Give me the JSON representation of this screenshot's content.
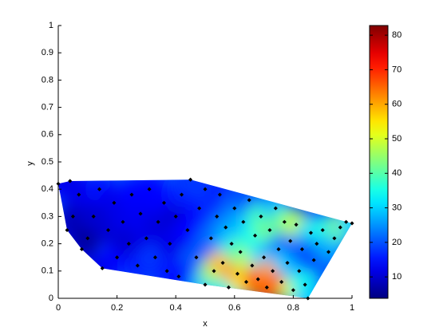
{
  "chart_data": {
    "type": "scatter",
    "xlabel": "x",
    "ylabel": "y",
    "xlim": [
      0,
      1
    ],
    "ylim": [
      0,
      1
    ],
    "xticks": [
      0,
      0.2,
      0.4,
      0.6,
      0.8,
      1
    ],
    "yticks": [
      0,
      0.1,
      0.2,
      0.3,
      0.4,
      0.5,
      0.6,
      0.7,
      0.8,
      0.9,
      1
    ],
    "marker_color": "#000000",
    "colormap": "jet",
    "x": [
      0.0,
      0.04,
      0.03,
      0.05,
      0.08,
      0.07,
      0.1,
      0.12,
      0.15,
      0.14,
      0.17,
      0.19,
      0.2,
      0.22,
      0.24,
      0.25,
      0.27,
      0.28,
      0.3,
      0.31,
      0.33,
      0.34,
      0.36,
      0.37,
      0.38,
      0.4,
      0.41,
      0.42,
      0.44,
      0.45,
      0.47,
      0.48,
      0.5,
      0.5,
      0.52,
      0.53,
      0.54,
      0.55,
      0.56,
      0.57,
      0.58,
      0.59,
      0.6,
      0.61,
      0.62,
      0.63,
      0.64,
      0.65,
      0.66,
      0.67,
      0.68,
      0.69,
      0.7,
      0.71,
      0.72,
      0.73,
      0.74,
      0.75,
      0.76,
      0.77,
      0.78,
      0.79,
      0.8,
      0.81,
      0.82,
      0.83,
      0.84,
      0.85,
      0.86,
      0.87,
      0.88,
      0.9,
      0.92,
      0.94,
      0.96,
      0.98,
      1.0
    ],
    "y": [
      0.42,
      0.43,
      0.25,
      0.3,
      0.18,
      0.38,
      0.22,
      0.3,
      0.11,
      0.4,
      0.25,
      0.35,
      0.15,
      0.28,
      0.2,
      0.38,
      0.12,
      0.31,
      0.22,
      0.4,
      0.15,
      0.28,
      0.35,
      0.1,
      0.2,
      0.3,
      0.08,
      0.38,
      0.25,
      0.435,
      0.15,
      0.33,
      0.05,
      0.4,
      0.22,
      0.1,
      0.3,
      0.38,
      0.13,
      0.26,
      0.04,
      0.2,
      0.33,
      0.09,
      0.17,
      0.28,
      0.06,
      0.36,
      0.12,
      0.23,
      0.07,
      0.3,
      0.15,
      0.04,
      0.25,
      0.1,
      0.33,
      0.18,
      0.06,
      0.28,
      0.13,
      0.21,
      0.03,
      0.27,
      0.1,
      0.18,
      0.05,
      0.0,
      0.24,
      0.14,
      0.2,
      0.25,
      0.17,
      0.22,
      0.26,
      0.28,
      0.275
    ],
    "z": [
      15,
      12,
      10,
      8,
      10,
      12,
      6,
      10,
      12,
      15,
      10,
      12,
      14,
      12,
      10,
      14,
      16,
      13,
      12,
      14,
      18,
      11,
      14,
      16,
      12,
      10,
      15,
      16,
      14,
      18,
      20,
      15,
      30,
      18,
      22,
      45,
      18,
      16,
      58,
      25,
      35,
      30,
      22,
      62,
      40,
      28,
      55,
      20,
      50,
      35,
      70,
      38,
      30,
      65,
      42,
      60,
      28,
      25,
      68,
      40,
      30,
      22,
      50,
      48,
      28,
      20,
      35,
      30,
      30,
      18,
      22,
      35,
      25,
      28,
      40,
      45,
      30
    ],
    "clim": [
      3.8,
      82.8
    ],
    "cticks": [
      10,
      20,
      30,
      40,
      50,
      60,
      70,
      80
    ]
  }
}
